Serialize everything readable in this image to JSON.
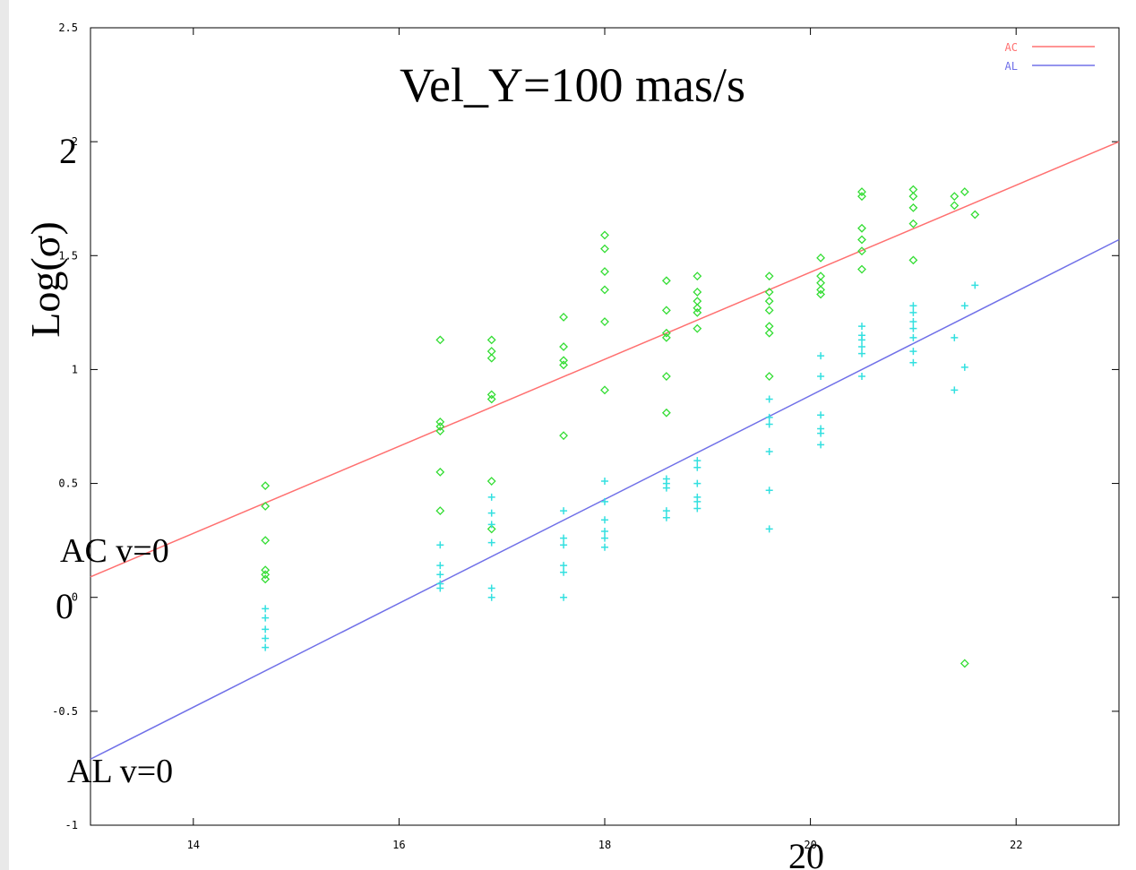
{
  "chart_data": {
    "type": "scatter",
    "title": "Vel_Y=100 mas/s",
    "xlabel": "",
    "ylabel": "Log(σ)",
    "xlim": [
      13,
      23
    ],
    "ylim": [
      -1,
      2.5
    ],
    "x_ticks": [
      "14",
      "16",
      "18",
      "20",
      "22"
    ],
    "y_ticks": [
      "2.5",
      "2",
      "1.5",
      "1",
      "0.5",
      "0",
      "-0.5",
      "-1"
    ],
    "grid": false,
    "legend_position": "top-right",
    "overlay_labels": {
      "y_two": "2",
      "y_zero": "0",
      "x_twenty": "20",
      "ac_label": "AC v=0",
      "al_label": "AL v=0"
    },
    "series": [
      {
        "name": "AC",
        "kind": "line",
        "color": "#ff7070",
        "x": [
          13,
          23
        ],
        "y": [
          0.09,
          2.0
        ]
      },
      {
        "name": "AL",
        "kind": "line",
        "color": "#7070e8",
        "x": [
          13,
          23
        ],
        "y": [
          -0.71,
          1.57
        ]
      },
      {
        "kind": "scatter",
        "marker": "diamond",
        "color": "#33dd33",
        "points": [
          [
            14.7,
            0.49
          ],
          [
            14.7,
            0.4
          ],
          [
            14.7,
            0.25
          ],
          [
            14.7,
            0.12
          ],
          [
            14.7,
            0.1
          ],
          [
            14.7,
            0.08
          ],
          [
            16.4,
            1.13
          ],
          [
            16.4,
            0.77
          ],
          [
            16.4,
            0.75
          ],
          [
            16.4,
            0.73
          ],
          [
            16.4,
            0.55
          ],
          [
            16.4,
            0.38
          ],
          [
            16.9,
            1.13
          ],
          [
            16.9,
            1.08
          ],
          [
            16.9,
            1.05
          ],
          [
            16.9,
            0.89
          ],
          [
            16.9,
            0.87
          ],
          [
            16.9,
            0.51
          ],
          [
            16.9,
            0.3
          ],
          [
            17.6,
            1.23
          ],
          [
            17.6,
            1.1
          ],
          [
            17.6,
            1.04
          ],
          [
            17.6,
            1.02
          ],
          [
            17.6,
            0.71
          ],
          [
            18.0,
            1.59
          ],
          [
            18.0,
            1.53
          ],
          [
            18.0,
            1.43
          ],
          [
            18.0,
            1.35
          ],
          [
            18.0,
            1.21
          ],
          [
            18.0,
            0.91
          ],
          [
            18.6,
            1.39
          ],
          [
            18.6,
            1.26
          ],
          [
            18.6,
            1.16
          ],
          [
            18.6,
            1.14
          ],
          [
            18.6,
            0.97
          ],
          [
            18.6,
            0.81
          ],
          [
            18.9,
            1.41
          ],
          [
            18.9,
            1.34
          ],
          [
            18.9,
            1.3
          ],
          [
            18.9,
            1.27
          ],
          [
            18.9,
            1.25
          ],
          [
            18.9,
            1.18
          ],
          [
            19.6,
            1.41
          ],
          [
            19.6,
            1.34
          ],
          [
            19.6,
            1.3
          ],
          [
            19.6,
            1.26
          ],
          [
            19.6,
            1.19
          ],
          [
            19.6,
            1.16
          ],
          [
            19.6,
            0.97
          ],
          [
            20.1,
            1.49
          ],
          [
            20.1,
            1.41
          ],
          [
            20.1,
            1.38
          ],
          [
            20.1,
            1.35
          ],
          [
            20.1,
            1.33
          ],
          [
            20.5,
            1.78
          ],
          [
            20.5,
            1.76
          ],
          [
            20.5,
            1.62
          ],
          [
            20.5,
            1.57
          ],
          [
            20.5,
            1.52
          ],
          [
            20.5,
            1.44
          ],
          [
            21.0,
            1.79
          ],
          [
            21.0,
            1.76
          ],
          [
            21.0,
            1.71
          ],
          [
            21.0,
            1.64
          ],
          [
            21.0,
            1.48
          ],
          [
            21.4,
            1.76
          ],
          [
            21.4,
            1.72
          ],
          [
            21.5,
            1.78
          ],
          [
            21.6,
            1.68
          ],
          [
            21.5,
            -0.29
          ]
        ]
      },
      {
        "kind": "scatter",
        "marker": "plus",
        "color": "#33e0e0",
        "points": [
          [
            14.7,
            -0.05
          ],
          [
            14.7,
            -0.09
          ],
          [
            14.7,
            -0.14
          ],
          [
            14.7,
            -0.18
          ],
          [
            14.7,
            -0.22
          ],
          [
            16.4,
            0.23
          ],
          [
            16.4,
            0.14
          ],
          [
            16.4,
            0.1
          ],
          [
            16.4,
            0.06
          ],
          [
            16.4,
            0.04
          ],
          [
            16.9,
            0.44
          ],
          [
            16.9,
            0.37
          ],
          [
            16.9,
            0.32
          ],
          [
            16.9,
            0.24
          ],
          [
            16.9,
            0.04
          ],
          [
            16.9,
            0.0
          ],
          [
            17.6,
            0.38
          ],
          [
            17.6,
            0.26
          ],
          [
            17.6,
            0.23
          ],
          [
            17.6,
            0.14
          ],
          [
            17.6,
            0.11
          ],
          [
            17.6,
            0.0
          ],
          [
            18.0,
            0.51
          ],
          [
            18.0,
            0.42
          ],
          [
            18.0,
            0.34
          ],
          [
            18.0,
            0.29
          ],
          [
            18.0,
            0.26
          ],
          [
            18.0,
            0.22
          ],
          [
            18.6,
            0.52
          ],
          [
            18.6,
            0.5
          ],
          [
            18.6,
            0.48
          ],
          [
            18.6,
            0.38
          ],
          [
            18.6,
            0.35
          ],
          [
            18.9,
            0.6
          ],
          [
            18.9,
            0.57
          ],
          [
            18.9,
            0.5
          ],
          [
            18.9,
            0.44
          ],
          [
            18.9,
            0.42
          ],
          [
            18.9,
            0.39
          ],
          [
            19.6,
            0.87
          ],
          [
            19.6,
            0.79
          ],
          [
            19.6,
            0.76
          ],
          [
            19.6,
            0.64
          ],
          [
            19.6,
            0.47
          ],
          [
            19.6,
            0.3
          ],
          [
            20.1,
            1.06
          ],
          [
            20.1,
            0.97
          ],
          [
            20.1,
            0.8
          ],
          [
            20.1,
            0.74
          ],
          [
            20.1,
            0.72
          ],
          [
            20.1,
            0.67
          ],
          [
            20.5,
            1.19
          ],
          [
            20.5,
            1.15
          ],
          [
            20.5,
            1.13
          ],
          [
            20.5,
            1.1
          ],
          [
            20.5,
            1.07
          ],
          [
            20.5,
            0.97
          ],
          [
            21.0,
            1.28
          ],
          [
            21.0,
            1.25
          ],
          [
            21.0,
            1.21
          ],
          [
            21.0,
            1.18
          ],
          [
            21.0,
            1.14
          ],
          [
            21.0,
            1.08
          ],
          [
            21.0,
            1.03
          ],
          [
            21.4,
            1.14
          ],
          [
            21.4,
            0.91
          ],
          [
            21.5,
            1.28
          ],
          [
            21.5,
            1.01
          ],
          [
            21.6,
            1.37
          ]
        ]
      }
    ]
  }
}
